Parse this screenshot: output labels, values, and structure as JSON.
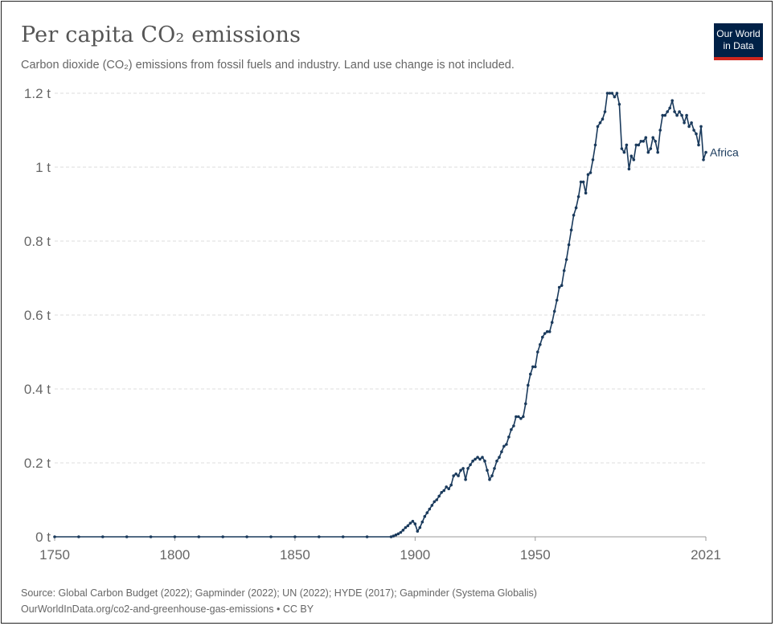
{
  "title": "Per capita CO₂ emissions",
  "subtitle": "Carbon dioxide (CO₂) emissions from fossil fuels and industry. Land use change is not included.",
  "logo": {
    "line1": "Our World",
    "line2": "in Data"
  },
  "footer": {
    "source": "Source: Global Carbon Budget (2022); Gapminder (2022); UN (2022); HYDE (2017); Gapminder (Systema Globalis)",
    "url": "OurWorldInData.org/co2-and-greenhouse-gas-emissions",
    "license": "CC BY"
  },
  "colors": {
    "series": "#1a3a5c",
    "grid": "#dddddd",
    "axis_text": "#666666",
    "logo_bg": "#002147",
    "logo_bar": "#ce261e"
  },
  "chart_data": {
    "type": "line",
    "title": "Per capita CO₂ emissions",
    "unit": "t",
    "xlim": [
      1750,
      2021
    ],
    "ylim": [
      0,
      1.2
    ],
    "x_ticks": [
      "1750",
      "1800",
      "1850",
      "1900",
      "1950",
      "2021"
    ],
    "y_ticks": [
      "0 t",
      "0.2 t",
      "0.4 t",
      "0.6 t",
      "0.8 t",
      "1 t",
      "1.2 t"
    ],
    "grid": "horizontal-dashed",
    "series": [
      {
        "name": "Africa",
        "color": "#1a3a5c",
        "points": [
          [
            1750,
            0
          ],
          [
            1760,
            0
          ],
          [
            1770,
            0
          ],
          [
            1780,
            0
          ],
          [
            1790,
            0
          ],
          [
            1800,
            0
          ],
          [
            1810,
            0
          ],
          [
            1820,
            0
          ],
          [
            1830,
            0
          ],
          [
            1840,
            0
          ],
          [
            1850,
            0
          ],
          [
            1860,
            0
          ],
          [
            1870,
            0
          ],
          [
            1880,
            0
          ],
          [
            1890,
            0
          ],
          [
            1891,
            0.002
          ],
          [
            1892,
            0.005
          ],
          [
            1893,
            0.008
          ],
          [
            1894,
            0.012
          ],
          [
            1895,
            0.018
          ],
          [
            1896,
            0.025
          ],
          [
            1897,
            0.03
          ],
          [
            1898,
            0.037
          ],
          [
            1899,
            0.042
          ],
          [
            1900,
            0.035
          ],
          [
            1901,
            0.015
          ],
          [
            1902,
            0.025
          ],
          [
            1903,
            0.04
          ],
          [
            1904,
            0.055
          ],
          [
            1905,
            0.065
          ],
          [
            1906,
            0.075
          ],
          [
            1907,
            0.085
          ],
          [
            1908,
            0.095
          ],
          [
            1909,
            0.1
          ],
          [
            1910,
            0.11
          ],
          [
            1911,
            0.12
          ],
          [
            1912,
            0.125
          ],
          [
            1913,
            0.135
          ],
          [
            1914,
            0.13
          ],
          [
            1915,
            0.14
          ],
          [
            1916,
            0.165
          ],
          [
            1917,
            0.17
          ],
          [
            1918,
            0.165
          ],
          [
            1919,
            0.18
          ],
          [
            1920,
            0.185
          ],
          [
            1921,
            0.155
          ],
          [
            1922,
            0.185
          ],
          [
            1923,
            0.195
          ],
          [
            1924,
            0.205
          ],
          [
            1925,
            0.21
          ],
          [
            1926,
            0.215
          ],
          [
            1927,
            0.21
          ],
          [
            1928,
            0.215
          ],
          [
            1929,
            0.205
          ],
          [
            1930,
            0.18
          ],
          [
            1931,
            0.155
          ],
          [
            1932,
            0.165
          ],
          [
            1933,
            0.185
          ],
          [
            1934,
            0.205
          ],
          [
            1935,
            0.215
          ],
          [
            1936,
            0.23
          ],
          [
            1937,
            0.245
          ],
          [
            1938,
            0.25
          ],
          [
            1939,
            0.27
          ],
          [
            1940,
            0.29
          ],
          [
            1941,
            0.3
          ],
          [
            1942,
            0.325
          ],
          [
            1943,
            0.325
          ],
          [
            1944,
            0.32
          ],
          [
            1945,
            0.325
          ],
          [
            1946,
            0.36
          ],
          [
            1947,
            0.41
          ],
          [
            1948,
            0.44
          ],
          [
            1949,
            0.46
          ],
          [
            1950,
            0.46
          ],
          [
            1951,
            0.5
          ],
          [
            1952,
            0.52
          ],
          [
            1953,
            0.54
          ],
          [
            1954,
            0.55
          ],
          [
            1955,
            0.555
          ],
          [
            1956,
            0.555
          ],
          [
            1957,
            0.58
          ],
          [
            1958,
            0.61
          ],
          [
            1959,
            0.64
          ],
          [
            1960,
            0.675
          ],
          [
            1961,
            0.68
          ],
          [
            1962,
            0.72
          ],
          [
            1963,
            0.75
          ],
          [
            1964,
            0.79
          ],
          [
            1965,
            0.83
          ],
          [
            1966,
            0.87
          ],
          [
            1967,
            0.89
          ],
          [
            1968,
            0.92
          ],
          [
            1969,
            0.96
          ],
          [
            1970,
            0.96
          ],
          [
            1971,
            0.93
          ],
          [
            1972,
            0.98
          ],
          [
            1973,
            0.985
          ],
          [
            1974,
            1.02
          ],
          [
            1975,
            1.06
          ],
          [
            1976,
            1.11
          ],
          [
            1977,
            1.12
          ],
          [
            1978,
            1.13
          ],
          [
            1979,
            1.15
          ],
          [
            1980,
            1.2
          ],
          [
            1981,
            1.2
          ],
          [
            1982,
            1.2
          ],
          [
            1983,
            1.19
          ],
          [
            1984,
            1.2
          ],
          [
            1985,
            1.17
          ],
          [
            1986,
            1.05
          ],
          [
            1987,
            1.04
          ],
          [
            1988,
            1.06
          ],
          [
            1989,
            0.995
          ],
          [
            1990,
            1.03
          ],
          [
            1991,
            1.02
          ],
          [
            1992,
            1.06
          ],
          [
            1993,
            1.06
          ],
          [
            1994,
            1.07
          ],
          [
            1995,
            1.07
          ],
          [
            1996,
            1.08
          ],
          [
            1997,
            1.04
          ],
          [
            1998,
            1.05
          ],
          [
            1999,
            1.08
          ],
          [
            2000,
            1.07
          ],
          [
            2001,
            1.04
          ],
          [
            2002,
            1.1
          ],
          [
            2003,
            1.14
          ],
          [
            2004,
            1.14
          ],
          [
            2005,
            1.15
          ],
          [
            2006,
            1.16
          ],
          [
            2007,
            1.18
          ],
          [
            2008,
            1.15
          ],
          [
            2009,
            1.14
          ],
          [
            2010,
            1.15
          ],
          [
            2011,
            1.14
          ],
          [
            2012,
            1.12
          ],
          [
            2013,
            1.14
          ],
          [
            2014,
            1.11
          ],
          [
            2015,
            1.12
          ],
          [
            2016,
            1.1
          ],
          [
            2017,
            1.09
          ],
          [
            2018,
            1.06
          ],
          [
            2019,
            1.11
          ],
          [
            2020,
            1.02
          ],
          [
            2021,
            1.04
          ]
        ]
      }
    ]
  }
}
